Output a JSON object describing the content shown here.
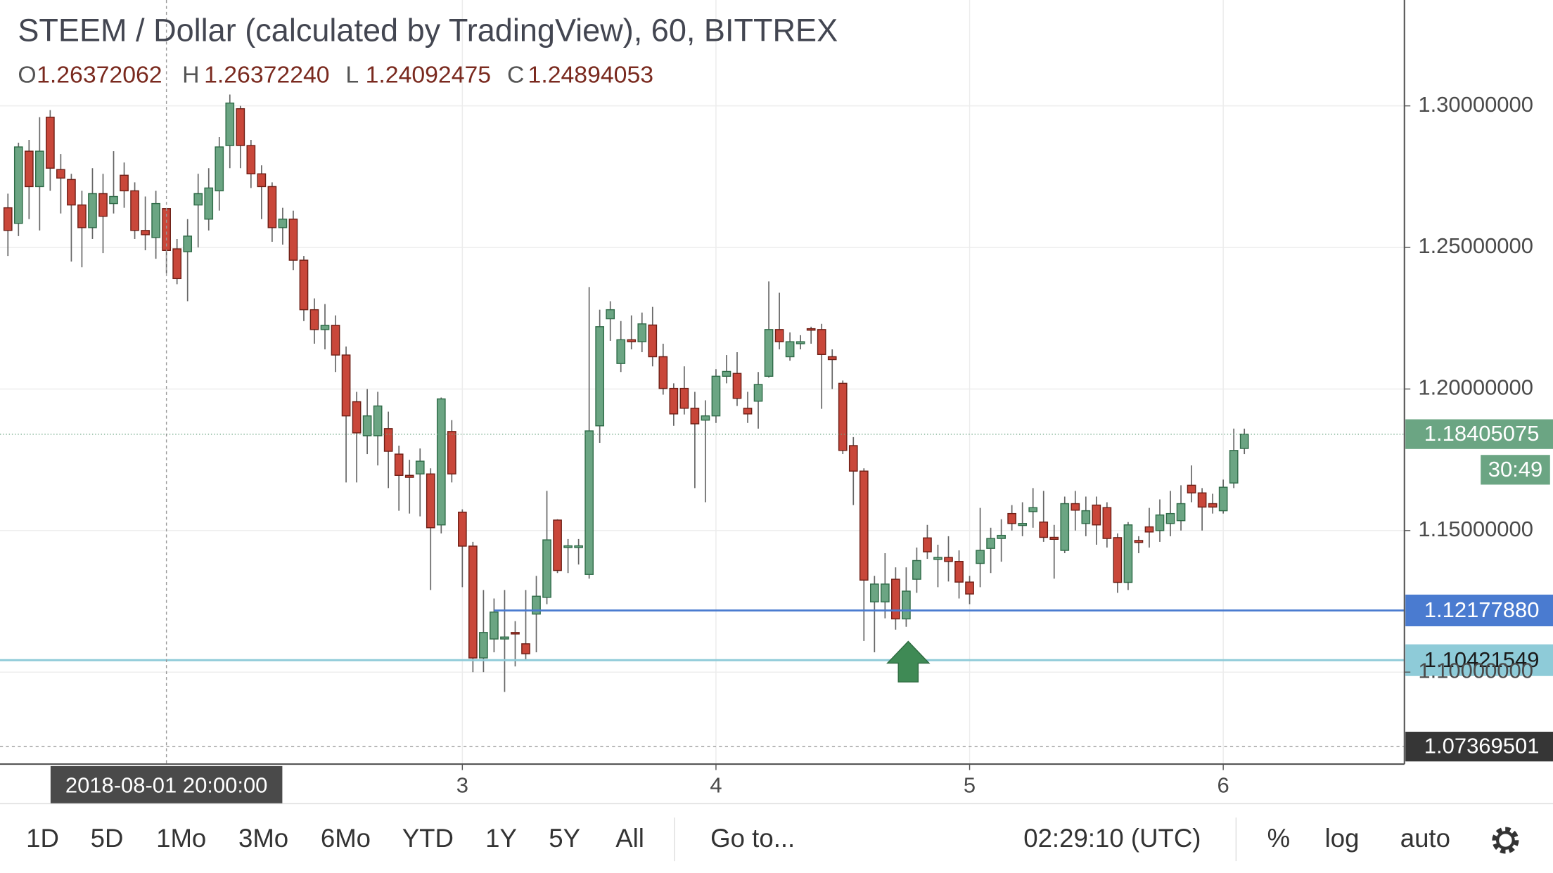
{
  "chart_data": {
    "type": "candlestick",
    "title": "STEEM / Dollar (calculated by TradingView), 60, BITTREX",
    "legend": {
      "labels": [
        "O",
        "H",
        "L",
        "C"
      ],
      "values": [
        "1.26372062",
        "1.26372240",
        "1.24092475",
        "1.24894053"
      ]
    },
    "up_color": "#6ba583",
    "down_color": "#c9473a",
    "x": [
      "2018-08-01 05:00",
      "2018-08-01 06:00",
      "2018-08-01 07:00",
      "2018-08-01 08:00",
      "2018-08-01 09:00",
      "2018-08-01 10:00",
      "2018-08-01 11:00",
      "2018-08-01 12:00",
      "2018-08-01 13:00",
      "2018-08-01 14:00",
      "2018-08-01 15:00",
      "2018-08-01 16:00",
      "2018-08-01 17:00",
      "2018-08-01 18:00",
      "2018-08-01 19:00",
      "2018-08-01 20:00",
      "2018-08-01 21:00",
      "2018-08-01 22:00",
      "2018-08-01 23:00",
      "2018-08-02 00:00",
      "2018-08-02 01:00",
      "2018-08-02 02:00",
      "2018-08-02 03:00",
      "2018-08-02 04:00",
      "2018-08-02 05:00",
      "2018-08-02 06:00",
      "2018-08-02 07:00",
      "2018-08-02 08:00",
      "2018-08-02 09:00",
      "2018-08-02 10:00",
      "2018-08-02 11:00",
      "2018-08-02 12:00",
      "2018-08-02 13:00",
      "2018-08-02 14:00",
      "2018-08-02 15:00",
      "2018-08-02 16:00",
      "2018-08-02 17:00",
      "2018-08-02 18:00",
      "2018-08-02 19:00",
      "2018-08-02 20:00",
      "2018-08-02 21:00",
      "2018-08-02 22:00",
      "2018-08-02 23:00",
      "2018-08-03 00:00",
      "2018-08-03 01:00",
      "2018-08-03 02:00",
      "2018-08-03 03:00",
      "2018-08-03 04:00",
      "2018-08-03 05:00",
      "2018-08-03 06:00",
      "2018-08-03 07:00",
      "2018-08-03 08:00",
      "2018-08-03 09:00",
      "2018-08-03 10:00",
      "2018-08-03 11:00",
      "2018-08-03 12:00",
      "2018-08-03 13:00",
      "2018-08-03 14:00",
      "2018-08-03 15:00",
      "2018-08-03 16:00",
      "2018-08-03 17:00",
      "2018-08-03 18:00",
      "2018-08-03 19:00",
      "2018-08-03 20:00",
      "2018-08-03 21:00",
      "2018-08-03 22:00",
      "2018-08-03 23:00",
      "2018-08-04 00:00",
      "2018-08-04 01:00",
      "2018-08-04 02:00",
      "2018-08-04 03:00",
      "2018-08-04 04:00",
      "2018-08-04 05:00",
      "2018-08-04 06:00",
      "2018-08-04 07:00",
      "2018-08-04 08:00",
      "2018-08-04 09:00",
      "2018-08-04 10:00",
      "2018-08-04 11:00",
      "2018-08-04 12:00",
      "2018-08-04 13:00",
      "2018-08-04 14:00",
      "2018-08-04 15:00",
      "2018-08-04 16:00",
      "2018-08-04 17:00",
      "2018-08-04 18:00",
      "2018-08-04 19:00",
      "2018-08-04 20:00",
      "2018-08-04 21:00",
      "2018-08-04 22:00",
      "2018-08-04 23:00",
      "2018-08-05 00:00",
      "2018-08-05 01:00",
      "2018-08-05 02:00",
      "2018-08-05 03:00",
      "2018-08-05 04:00",
      "2018-08-05 05:00",
      "2018-08-05 06:00",
      "2018-08-05 07:00",
      "2018-08-05 08:00",
      "2018-08-05 09:00",
      "2018-08-05 10:00",
      "2018-08-05 11:00",
      "2018-08-05 12:00",
      "2018-08-05 13:00",
      "2018-08-05 14:00",
      "2018-08-05 15:00",
      "2018-08-05 16:00",
      "2018-08-05 17:00",
      "2018-08-05 18:00",
      "2018-08-05 19:00",
      "2018-08-05 20:00",
      "2018-08-05 21:00",
      "2018-08-05 22:00",
      "2018-08-05 23:00",
      "2018-08-06 00:00",
      "2018-08-06 01:00",
      "2018-08-06 02:00"
    ],
    "open": [
      1.264,
      1.2585,
      1.284,
      1.2715,
      1.296,
      1.2775,
      1.274,
      1.265,
      1.257,
      1.269,
      1.2655,
      1.2755,
      1.27,
      1.256,
      1.2535,
      1.26372062,
      1.2495,
      1.2485,
      1.265,
      1.26,
      1.27,
      1.286,
      1.299,
      1.286,
      1.276,
      1.2715,
      1.257,
      1.26,
      1.2455,
      1.228,
      1.221,
      1.2225,
      1.212,
      1.1955,
      1.1835,
      1.1835,
      1.186,
      1.177,
      1.1695,
      1.17,
      1.17,
      1.152,
      1.185,
      1.1565,
      1.1445,
      1.105,
      1.1117,
      1.1117,
      1.114,
      1.11,
      1.1205,
      1.1264,
      1.1537,
      1.144,
      1.144,
      1.1345,
      1.187,
      1.2248,
      1.209,
      1.2174,
      1.2167,
      1.2226,
      1.2114,
      1.2002,
      1.2002,
      1.1932,
      1.189,
      1.1905,
      1.2045,
      1.2055,
      1.1932,
      1.1957,
      1.2045,
      1.221,
      1.2114,
      1.216,
      1.2213,
      1.221,
      1.2114,
      1.202,
      1.18,
      1.171,
      1.1248,
      1.1248,
      1.1328,
      1.1188,
      1.1328,
      1.1474,
      1.1398,
      1.1405,
      1.1391,
      1.1318,
      1.1384,
      1.1437,
      1.1472,
      1.156,
      1.1518,
      1.1567,
      1.153,
      1.1476,
      1.143,
      1.1595,
      1.1525,
      1.159,
      1.1581,
      1.1475,
      1.1317,
      1.1465,
      1.1513,
      1.15,
      1.1525,
      1.1535,
      1.166,
      1.1633,
      1.1595,
      1.157,
      1.1668,
      1.179
    ],
    "high": [
      1.269,
      1.287,
      1.288,
      1.296,
      1.2985,
      1.283,
      1.276,
      1.27,
      1.278,
      1.276,
      1.284,
      1.28,
      1.273,
      1.268,
      1.27,
      1.2637224,
      1.253,
      1.26,
      1.276,
      1.278,
      1.289,
      1.304,
      1.3,
      1.288,
      1.279,
      1.273,
      1.264,
      1.263,
      1.247,
      1.232,
      1.23,
      1.226,
      1.215,
      1.199,
      1.2,
      1.199,
      1.192,
      1.18,
      1.175,
      1.179,
      1.172,
      1.197,
      1.189,
      1.1575,
      1.146,
      1.129,
      1.126,
      1.129,
      1.118,
      1.129,
      1.134,
      1.164,
      1.154,
      1.147,
      1.147,
      1.236,
      1.228,
      1.231,
      1.224,
      1.226,
      1.227,
      1.229,
      1.216,
      1.202,
      1.208,
      1.199,
      1.196,
      1.207,
      1.212,
      1.213,
      1.199,
      1.206,
      1.238,
      1.234,
      1.22,
      1.219,
      1.222,
      1.223,
      1.214,
      1.203,
      1.183,
      1.172,
      1.134,
      1.142,
      1.137,
      1.137,
      1.144,
      1.152,
      1.145,
      1.148,
      1.143,
      1.134,
      1.158,
      1.151,
      1.154,
      1.159,
      1.16,
      1.165,
      1.164,
      1.152,
      1.162,
      1.164,
      1.162,
      1.162,
      1.16,
      1.149,
      1.153,
      1.148,
      1.158,
      1.161,
      1.164,
      1.166,
      1.173,
      1.165,
      1.163,
      1.168,
      1.186,
      1.186
    ],
    "low": [
      1.247,
      1.254,
      1.26,
      1.256,
      1.27,
      1.262,
      1.245,
      1.243,
      1.253,
      1.248,
      1.262,
      1.264,
      1.253,
      1.249,
      1.246,
      1.24092475,
      1.237,
      1.231,
      1.25,
      1.256,
      1.263,
      1.278,
      1.278,
      1.271,
      1.26,
      1.252,
      1.251,
      1.242,
      1.224,
      1.216,
      1.214,
      1.206,
      1.167,
      1.167,
      1.177,
      1.173,
      1.165,
      1.157,
      1.156,
      1.155,
      1.129,
      1.149,
      1.167,
      1.13,
      1.1,
      1.1,
      1.107,
      1.093,
      1.102,
      1.104,
      1.107,
      1.124,
      1.135,
      1.135,
      1.138,
      1.133,
      1.181,
      1.217,
      1.206,
      1.214,
      1.213,
      1.208,
      1.198,
      1.187,
      1.191,
      1.165,
      1.16,
      1.188,
      1.202,
      1.194,
      1.188,
      1.186,
      1.204,
      1.214,
      1.21,
      1.214,
      1.216,
      1.193,
      1.2,
      1.177,
      1.159,
      1.111,
      1.107,
      1.119,
      1.115,
      1.116,
      1.128,
      1.14,
      1.13,
      1.132,
      1.126,
      1.124,
      1.13,
      1.135,
      1.139,
      1.15,
      1.148,
      1.151,
      1.146,
      1.133,
      1.142,
      1.15,
      1.148,
      1.145,
      1.144,
      1.128,
      1.129,
      1.142,
      1.144,
      1.146,
      1.148,
      1.15,
      1.16,
      1.15,
      1.156,
      1.156,
      1.165,
      1.177
    ],
    "close": [
      1.256,
      1.2855,
      1.2715,
      1.284,
      1.278,
      1.2745,
      1.265,
      1.257,
      1.269,
      1.261,
      1.268,
      1.27,
      1.256,
      1.2545,
      1.2655,
      1.24894053,
      1.239,
      1.254,
      1.269,
      1.271,
      1.2855,
      1.301,
      1.286,
      1.276,
      1.2715,
      1.257,
      1.26,
      1.2455,
      1.228,
      1.221,
      1.2225,
      1.212,
      1.1905,
      1.1845,
      1.1905,
      1.194,
      1.178,
      1.1695,
      1.1688,
      1.1745,
      1.151,
      1.1965,
      1.17,
      1.1445,
      1.105,
      1.114,
      1.1212,
      1.1124,
      1.1135,
      1.1065,
      1.1268,
      1.1467,
      1.1359,
      1.1446,
      1.1446,
      1.1852,
      1.222,
      1.228,
      1.2174,
      1.2167,
      1.223,
      1.2114,
      1.2002,
      1.1912,
      1.1932,
      1.1877,
      1.1905,
      1.2045,
      1.2062,
      1.1967,
      1.1912,
      1.2016,
      1.221,
      1.2167,
      1.2167,
      1.2167,
      1.221,
      1.2122,
      1.2104,
      1.1783,
      1.171,
      1.1325,
      1.1311,
      1.1311,
      1.1188,
      1.1286,
      1.1394,
      1.1425,
      1.1405,
      1.1391,
      1.1318,
      1.1276,
      1.143,
      1.1472,
      1.1483,
      1.1525,
      1.1525,
      1.1581,
      1.1476,
      1.1469,
      1.1595,
      1.1572,
      1.157,
      1.152,
      1.1472,
      1.1317,
      1.152,
      1.1458,
      1.1495,
      1.1555,
      1.156,
      1.1595,
      1.1633,
      1.1583,
      1.1583,
      1.1653,
      1.1783,
      1.18405075
    ],
    "ylim": [
      1.0675,
      1.3374
    ],
    "yticks": [
      {
        "value": 1.1,
        "label": "1.10000000"
      },
      {
        "value": 1.15,
        "label": "1.15000000"
      },
      {
        "value": 1.2,
        "label": "1.20000000"
      },
      {
        "value": 1.25,
        "label": "1.25000000"
      },
      {
        "value": 1.3,
        "label": "1.30000000"
      }
    ],
    "xticks": [
      {
        "value": "2018-08-03 00:00",
        "label": "3"
      },
      {
        "value": "2018-08-04 00:00",
        "label": "4"
      },
      {
        "value": "2018-08-05 00:00",
        "label": "5"
      },
      {
        "value": "2018-08-06 00:00",
        "label": "6"
      }
    ],
    "grid": true,
    "log": false,
    "price_lines": [
      {
        "value": 1.1217788,
        "label": "1.12177880",
        "color": "#4a7bd0",
        "text_color": "#ffffff",
        "start": "2018-08-03 03:00"
      },
      {
        "value": 1.10421549,
        "label": "1.10421549",
        "color": "#8ecbd8",
        "text_color": "#1a1a1a"
      }
    ],
    "last_price": {
      "value": 1.18405075,
      "label": "1.18405075",
      "countdown": "30:49"
    },
    "crosshair": {
      "x": "2018-08-01 20:00",
      "x_label": "2018-08-01 20:00:00",
      "y": 1.07369501,
      "y_label": "1.07369501"
    }
  },
  "toolbar": {
    "ranges": [
      "1D",
      "5D",
      "1Mo",
      "3Mo",
      "6Mo",
      "YTD",
      "1Y",
      "5Y",
      "All"
    ],
    "goto": "Go to...",
    "clock": "02:29:10 (UTC)",
    "options": [
      "%",
      "log",
      "auto"
    ]
  }
}
